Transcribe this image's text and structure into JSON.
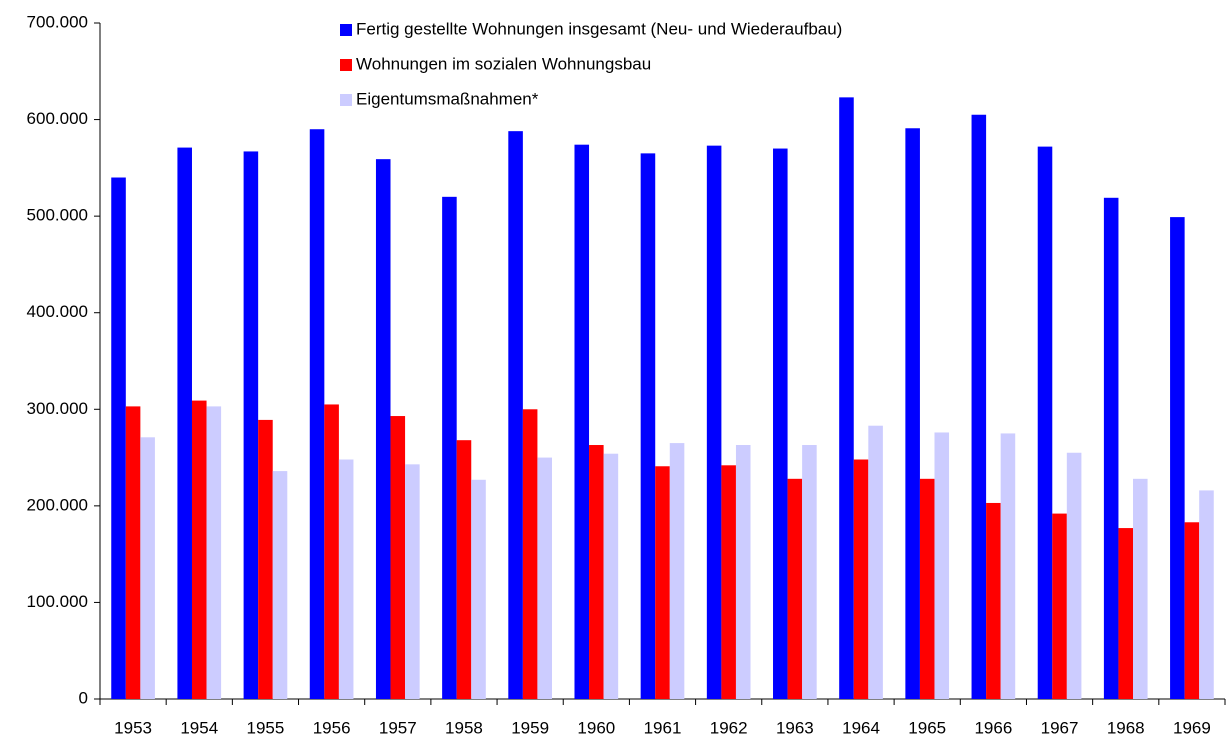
{
  "chart_data": {
    "type": "bar",
    "categories": [
      "1953",
      "1954",
      "1955",
      "1956",
      "1957",
      "1958",
      "1959",
      "1960",
      "1961",
      "1962",
      "1963",
      "1964",
      "1965",
      "1966",
      "1967",
      "1968",
      "1969"
    ],
    "series": [
      {
        "name": "Fertig gestellte Wohnungen insgesamt (Neu- und Wiederaufbau)",
        "color": "#0000ff",
        "values": [
          540000,
          571000,
          567000,
          590000,
          559000,
          520000,
          588000,
          574000,
          565000,
          573000,
          570000,
          623000,
          591000,
          605000,
          572000,
          519000,
          499000
        ]
      },
      {
        "name": "Wohnungen im sozialen Wohnungsbau",
        "color": "#ff0000",
        "values": [
          303000,
          309000,
          289000,
          305000,
          293000,
          268000,
          300000,
          263000,
          241000,
          242000,
          228000,
          248000,
          228000,
          203000,
          192000,
          177000,
          183000
        ]
      },
      {
        "name": "Eigentumsmaßnahmen*",
        "color": "#ccccff",
        "values": [
          271000,
          303000,
          236000,
          248000,
          243000,
          227000,
          250000,
          254000,
          265000,
          263000,
          263000,
          283000,
          276000,
          275000,
          255000,
          228000,
          216000
        ]
      }
    ],
    "ylim": [
      0,
      700000
    ],
    "yticks": [
      0,
      {
        "value": 100000,
        "label": "100.000"
      },
      {
        "value": 200000,
        "label": "200.000"
      },
      {
        "value": 300000,
        "label": "300.000"
      },
      {
        "value": 400000,
        "label": "400.000"
      },
      {
        "value": 500000,
        "label": "500.000"
      },
      {
        "value": 600000,
        "label": "600.000"
      },
      {
        "value": 700000,
        "label": "700.000"
      }
    ],
    "grid": false,
    "legend": "top"
  }
}
